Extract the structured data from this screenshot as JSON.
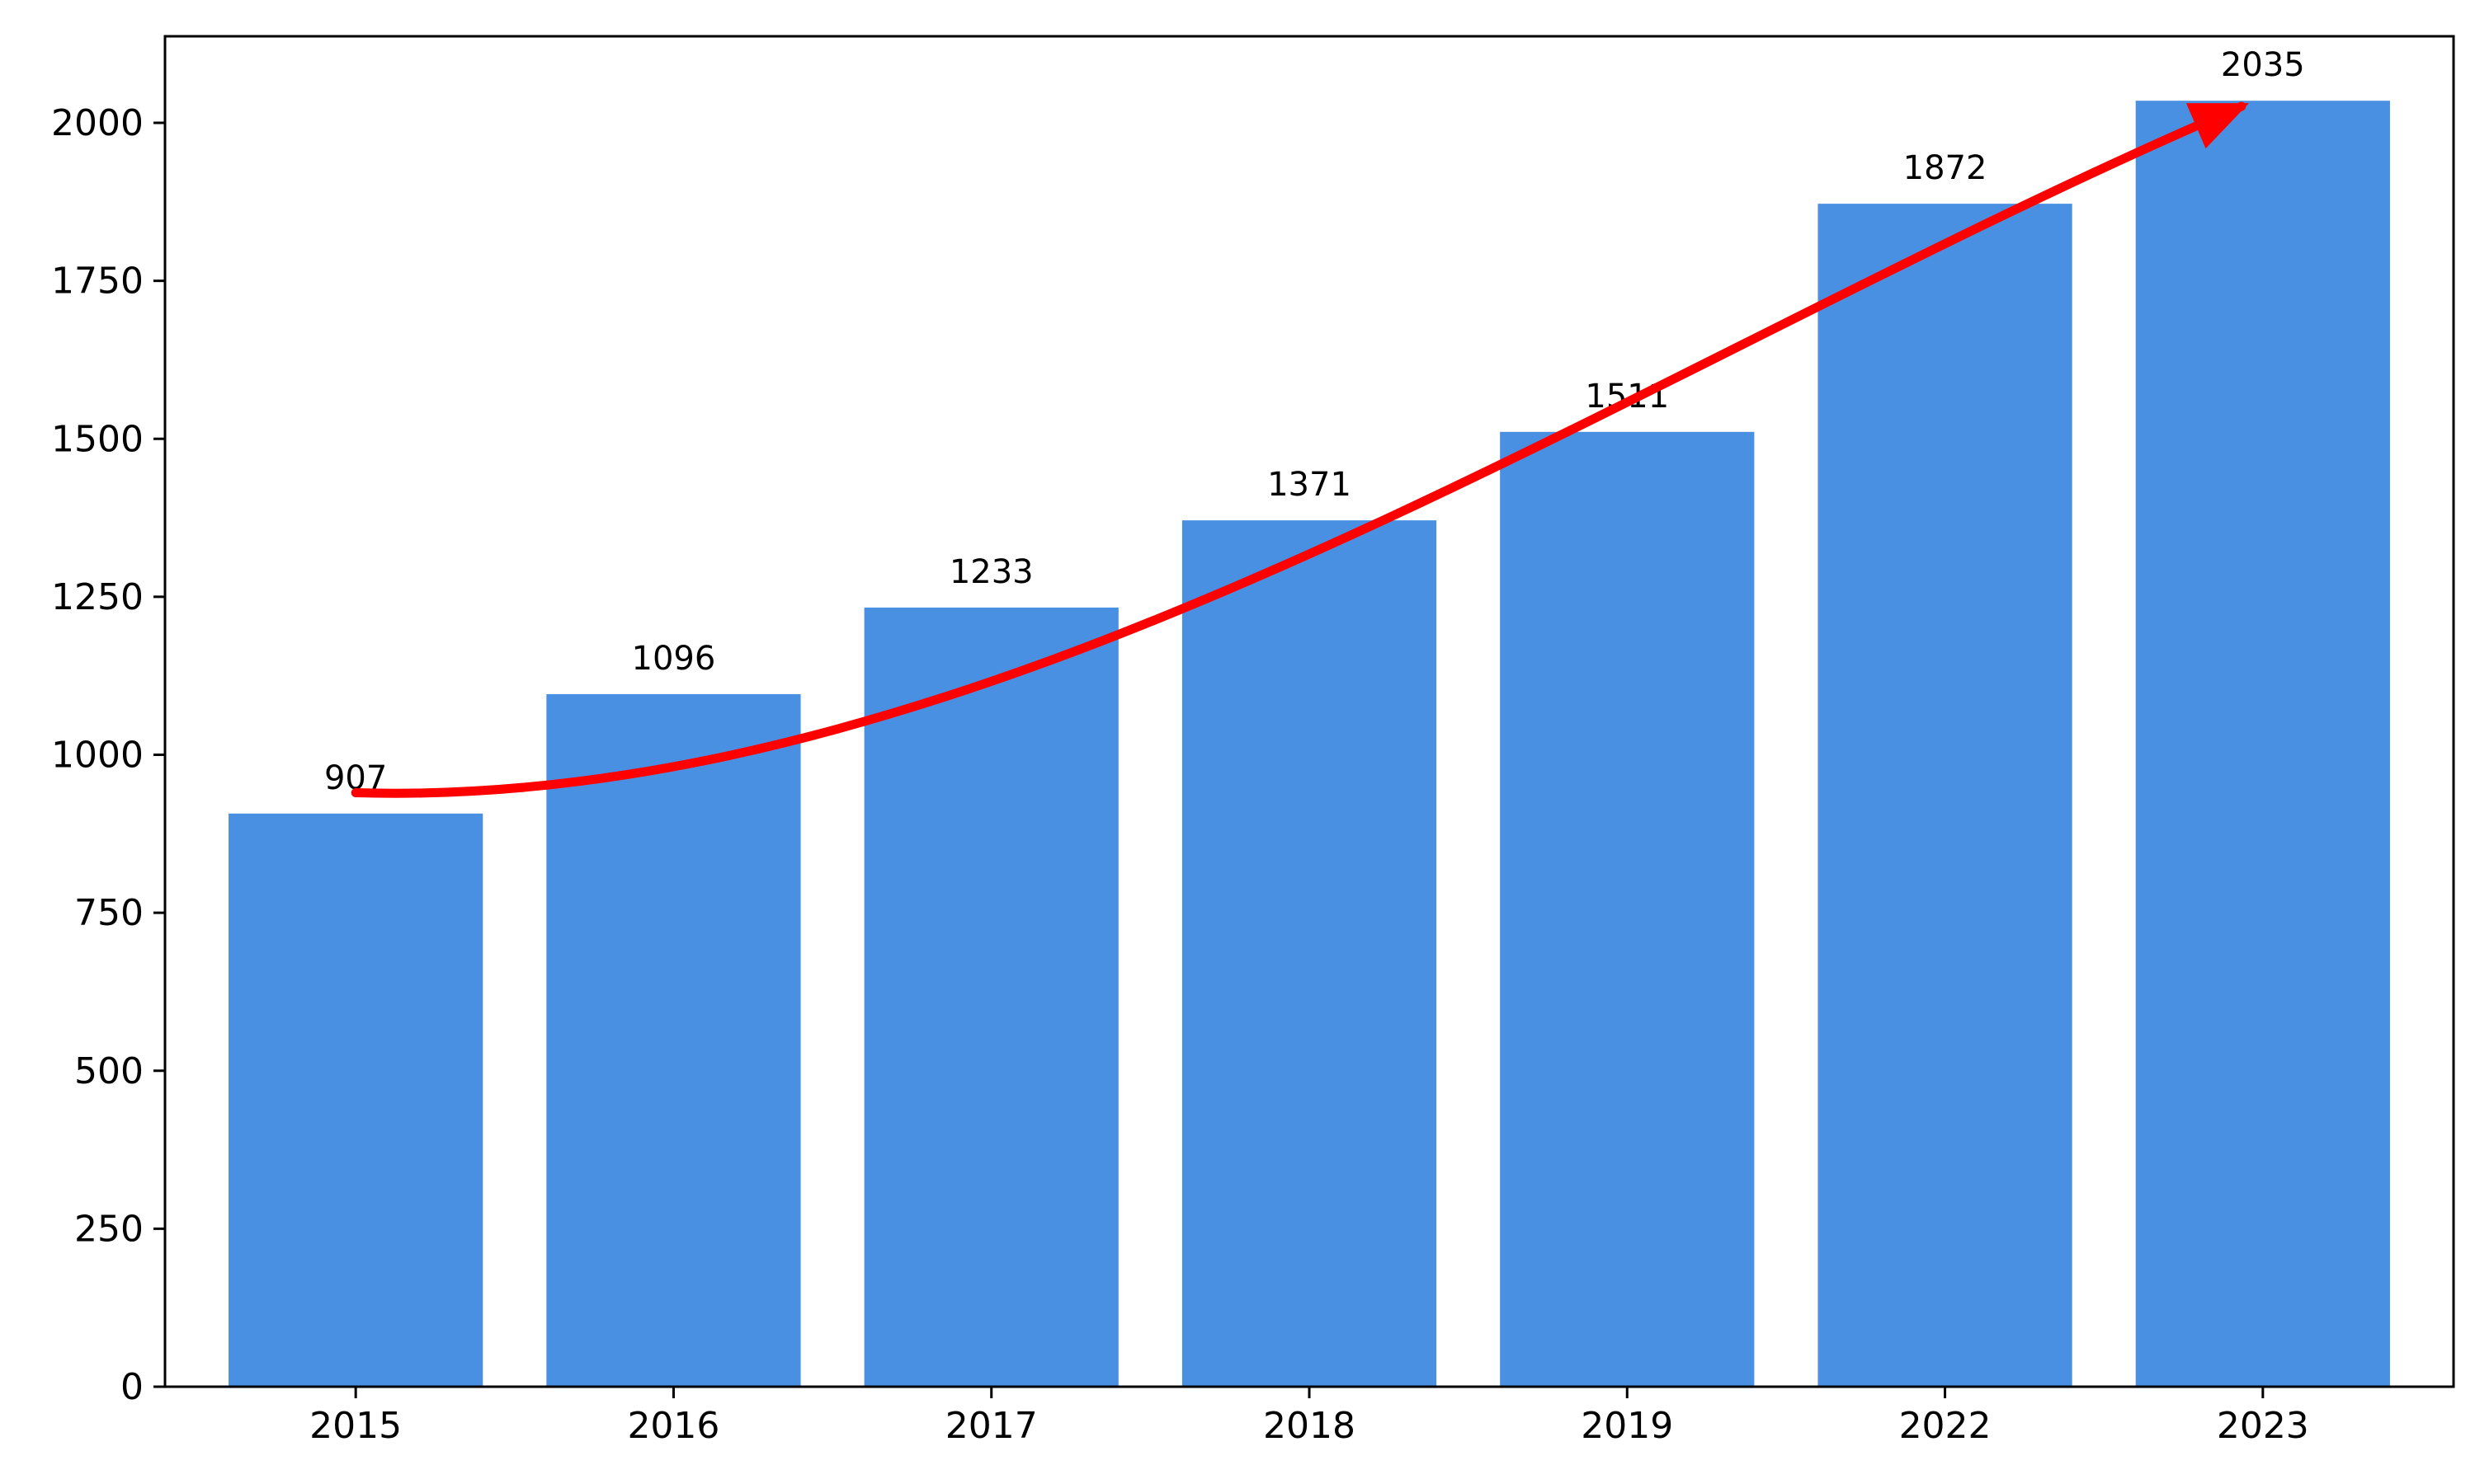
{
  "chart_data": {
    "type": "bar",
    "title": "",
    "xlabel": "",
    "ylabel": "",
    "categories": [
      "2015",
      "2016",
      "2017",
      "2018",
      "2019",
      "2022",
      "2023"
    ],
    "values": [
      907,
      1096,
      1233,
      1371,
      1511,
      1872,
      2035
    ],
    "data_labels": [
      "907",
      "1096",
      "1233",
      "1371",
      "1511",
      "1872",
      "2035"
    ],
    "ylim": [
      0,
      2137
    ],
    "yticks": [
      0,
      250,
      500,
      750,
      1000,
      1250,
      1500,
      1750,
      2000
    ],
    "ytick_labels": [
      "0",
      "250",
      "500",
      "750",
      "1000",
      "1250",
      "1500",
      "1750",
      "2000"
    ],
    "grid": false,
    "legend": "none",
    "bar_color": "#4a90e2",
    "annotation": {
      "type": "curved-arrow",
      "color": "#ff0000",
      "from": {
        "category": "2015",
        "value": 940
      },
      "to": {
        "category": "2023",
        "value": 2060
      }
    }
  }
}
